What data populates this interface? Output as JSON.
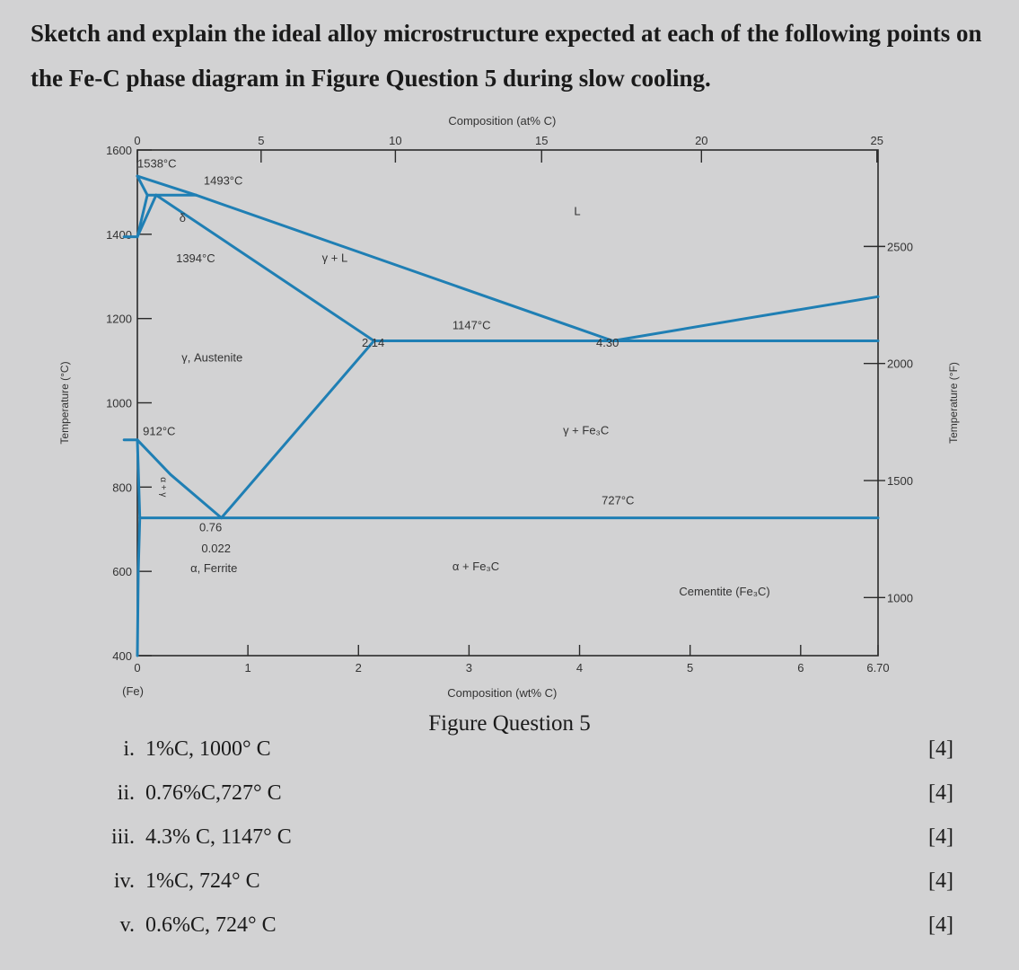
{
  "question": {
    "intro": "Sketch and explain the ideal alloy microstructure expected at each of the following points on the Fe-C phase diagram in Figure Question 5 during slow cooling."
  },
  "figure": {
    "caption": "Figure Question 5",
    "top_axis": {
      "title": "Composition (at% C)",
      "ticks": [
        {
          "v": 0,
          "label": "0"
        },
        {
          "v": 5,
          "label": "5"
        },
        {
          "v": 10,
          "label": "10"
        },
        {
          "v": 15,
          "label": "15"
        },
        {
          "v": 20,
          "label": "20"
        },
        {
          "v": 25,
          "label": "25"
        }
      ]
    },
    "bottom_axis": {
      "title": "Composition (wt% C)",
      "ticks": [
        {
          "v": 0,
          "label": "0"
        },
        {
          "v": 1,
          "label": "1"
        },
        {
          "v": 2,
          "label": "2"
        },
        {
          "v": 3,
          "label": "3"
        },
        {
          "v": 4,
          "label": "4"
        },
        {
          "v": 5,
          "label": "5"
        },
        {
          "v": 6,
          "label": "6"
        },
        {
          "v": 6.7,
          "label": "6.70"
        }
      ],
      "sublabel": "(Fe)"
    },
    "left_axis": {
      "title": "Temperature (°C)",
      "ticks": [
        400,
        600,
        800,
        1000,
        1200,
        1400,
        1600
      ]
    },
    "right_axis": {
      "title": "Temperature (°F)",
      "ticks": [
        {
          "f": 1000,
          "label": "1000"
        },
        {
          "f": 1500,
          "label": "1500"
        },
        {
          "f": 2000,
          "label": "2000"
        },
        {
          "f": 2500,
          "label": "2500"
        }
      ]
    },
    "line_color": "#1f7fb4",
    "boundaries": [
      {
        "name": "liquidus-left",
        "points": [
          [
            0,
            1538
          ],
          [
            0.53,
            1493
          ]
        ]
      },
      {
        "name": "liquidus-main",
        "points": [
          [
            0.53,
            1493
          ],
          [
            4.3,
            1147
          ]
        ]
      },
      {
        "name": "liquidus-right",
        "points": [
          [
            4.3,
            1147
          ],
          [
            5.5,
            1200
          ],
          [
            6.7,
            1252
          ]
        ]
      },
      {
        "name": "solidus",
        "points": [
          [
            0.17,
            1493
          ],
          [
            2.14,
            1147
          ]
        ]
      },
      {
        "name": "delta-solidus",
        "points": [
          [
            0,
            1538
          ],
          [
            0.09,
            1493
          ]
        ]
      },
      {
        "name": "peritectic-line",
        "points": [
          [
            0.09,
            1493
          ],
          [
            0.53,
            1493
          ]
        ]
      },
      {
        "name": "delta-gamma-upper",
        "points": [
          [
            0.09,
            1493
          ],
          [
            0,
            1394
          ]
        ]
      },
      {
        "name": "delta-gamma-lower",
        "points": [
          [
            0.17,
            1493
          ],
          [
            0,
            1394
          ]
        ]
      },
      {
        "name": "eutectic-line",
        "points": [
          [
            2.14,
            1147
          ],
          [
            6.7,
            1147
          ]
        ]
      },
      {
        "name": "acm-line",
        "points": [
          [
            2.14,
            1147
          ],
          [
            0.76,
            727
          ]
        ]
      },
      {
        "name": "a3-line",
        "points": [
          [
            0,
            912
          ],
          [
            0.3,
            830
          ],
          [
            0.76,
            727
          ]
        ]
      },
      {
        "name": "alpha-gamma",
        "points": [
          [
            0,
            912
          ],
          [
            0.022,
            727
          ]
        ]
      },
      {
        "name": "eutectoid-line",
        "points": [
          [
            0.022,
            727
          ],
          [
            6.7,
            727
          ]
        ]
      },
      {
        "name": "ferrite-solvus",
        "points": [
          [
            0.022,
            727
          ],
          [
            0.008,
            600
          ],
          [
            0,
            400
          ]
        ]
      },
      {
        "name": "tie-1394",
        "points": [
          [
            0,
            1394
          ],
          [
            -0.12,
            1394
          ]
        ]
      },
      {
        "name": "tie-912",
        "points": [
          [
            0,
            912
          ],
          [
            -0.12,
            912
          ]
        ]
      }
    ],
    "labels": [
      {
        "name": "label-1538",
        "text": "1538°C",
        "c": 0.0,
        "t": 1558
      },
      {
        "name": "label-1493",
        "text": "1493°C",
        "c": 0.6,
        "t": 1518
      },
      {
        "name": "label-delta",
        "text": "δ",
        "c": 0.38,
        "t": 1430
      },
      {
        "name": "label-1394",
        "text": "1394°C",
        "c": 0.35,
        "t": 1334
      },
      {
        "name": "label-gamma-L",
        "text": "γ + L",
        "c": 1.67,
        "t": 1335
      },
      {
        "name": "label-L",
        "text": "L",
        "c": 3.95,
        "t": 1445
      },
      {
        "name": "label-1147",
        "text": "1147°C",
        "c": 2.85,
        "t": 1175
      },
      {
        "name": "label-2-14",
        "text": "2.14",
        "c": 2.03,
        "t": 1133
      },
      {
        "name": "label-4-30",
        "text": "4.30",
        "c": 4.15,
        "t": 1133
      },
      {
        "name": "label-austenite",
        "text": "γ, Austenite",
        "c": 0.4,
        "t": 1098
      },
      {
        "name": "label-912",
        "text": "912°C",
        "c": 0.05,
        "t": 923
      },
      {
        "name": "label-gamma-fe3c",
        "text": "γ + Fe₃C",
        "c": 3.85,
        "t": 925
      },
      {
        "name": "label-727",
        "text": "727°C",
        "c": 4.2,
        "t": 759
      },
      {
        "name": "label-0-76",
        "text": "0.76",
        "c": 0.56,
        "t": 695
      },
      {
        "name": "label-0-022",
        "text": "0.022",
        "c": 0.58,
        "t": 645
      },
      {
        "name": "label-ferrite",
        "text": "α, Ferrite",
        "c": 0.48,
        "t": 598
      },
      {
        "name": "label-alpha-fe3c",
        "text": "α + Fe₃C",
        "c": 2.85,
        "t": 603
      },
      {
        "name": "label-cementite",
        "text": "Cementite (Fe₃C)",
        "c": 4.9,
        "t": 543
      }
    ],
    "vertical_label": {
      "name": "label-alpha-gamma-region",
      "text": "α + γ",
      "c": 0.21,
      "t": 800
    }
  },
  "items": [
    {
      "num": "i.",
      "text": "1%C, 1000° C",
      "marks": "[4]"
    },
    {
      "num": "ii.",
      "text": "0.76%C,727° C",
      "marks": "[4]"
    },
    {
      "num": "iii.",
      "text": "4.3% C, 1147° C",
      "marks": "[4]"
    },
    {
      "num": "iv.",
      "text": "1%C, 724° C",
      "marks": "[4]"
    },
    {
      "num": "v.",
      "text": "0.6%C, 724° C",
      "marks": "[4]"
    }
  ]
}
